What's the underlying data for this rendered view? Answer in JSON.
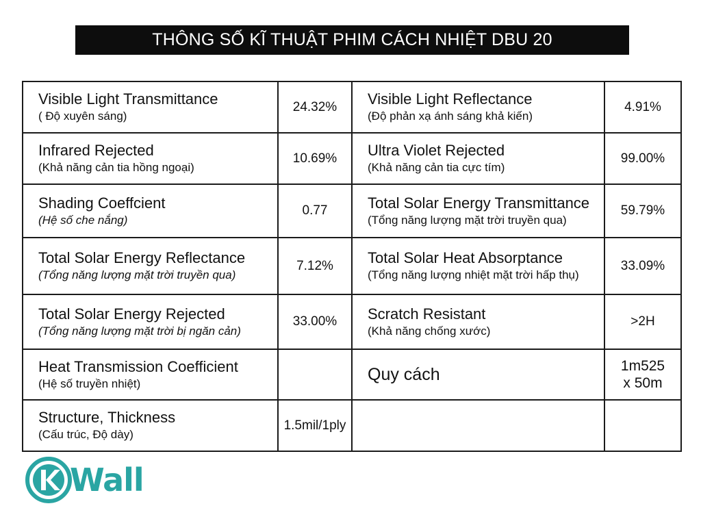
{
  "title": "THÔNG SỐ KĨ THUẬT PHIM CÁCH NHIỆT DBU 20",
  "rows": [
    [
      {
        "en": "Visible Light Transmittance",
        "vi": "( Độ xuyên sáng)",
        "value": "24.32%"
      },
      {
        "en": "Visible Light Reflectance",
        "vi": "(Độ phản xạ ánh sáng khả kiến)",
        "value": "4.91%"
      }
    ],
    [
      {
        "en": "Infrared Rejected",
        "vi": "(Khả năng cản tia hồng ngoại)",
        "value": "10.69%"
      },
      {
        "en": "Ultra Violet Rejected",
        "vi": "(Khả năng cản tia cực tím)",
        "value": "99.00%"
      }
    ],
    [
      {
        "en": "Shading Coeffcient",
        "vi": "(Hệ số che nắng)",
        "value": "0.77"
      },
      {
        "en": "Total Solar Energy Transmittance",
        "vi": "(Tổng năng lượng mặt trời truyền qua)",
        "value": "59.79%"
      }
    ],
    [
      {
        "en": "Total Solar Energy Reflectance",
        "vi": "(Tổng năng lượng mặt trời truyền qua)",
        "value": "7.12%"
      },
      {
        "en": "Total Solar Heat Absorptance",
        "vi": "(Tổng năng lượng nhiệt mặt trời hấp thụ)",
        "value": "33.09%"
      }
    ],
    [
      {
        "en": "Total Solar Energy Rejected",
        "vi": "(Tổng năng lượng mặt trời bị ngăn cản)",
        "value": "33.00%"
      },
      {
        "en": "Scratch Resistant",
        "vi": "(Khả năng chống xước)",
        "value": ">2H"
      }
    ],
    [
      {
        "en": "Heat Transmission Coefficient",
        "vi": "(Hệ số truyền nhiệt)",
        "value": ""
      },
      {
        "label": "Quy cách",
        "value_line1": "1m525",
        "value_line2": "x 50m"
      }
    ],
    [
      {
        "en": "Structure, Thickness",
        "vi": "(Cấu trúc, Độ dày)",
        "value": "1.5mil/1ply"
      }
    ]
  ],
  "logo": {
    "text": "Wall",
    "icon": "k-circle-logo-icon",
    "color": "#2aa5a3"
  }
}
